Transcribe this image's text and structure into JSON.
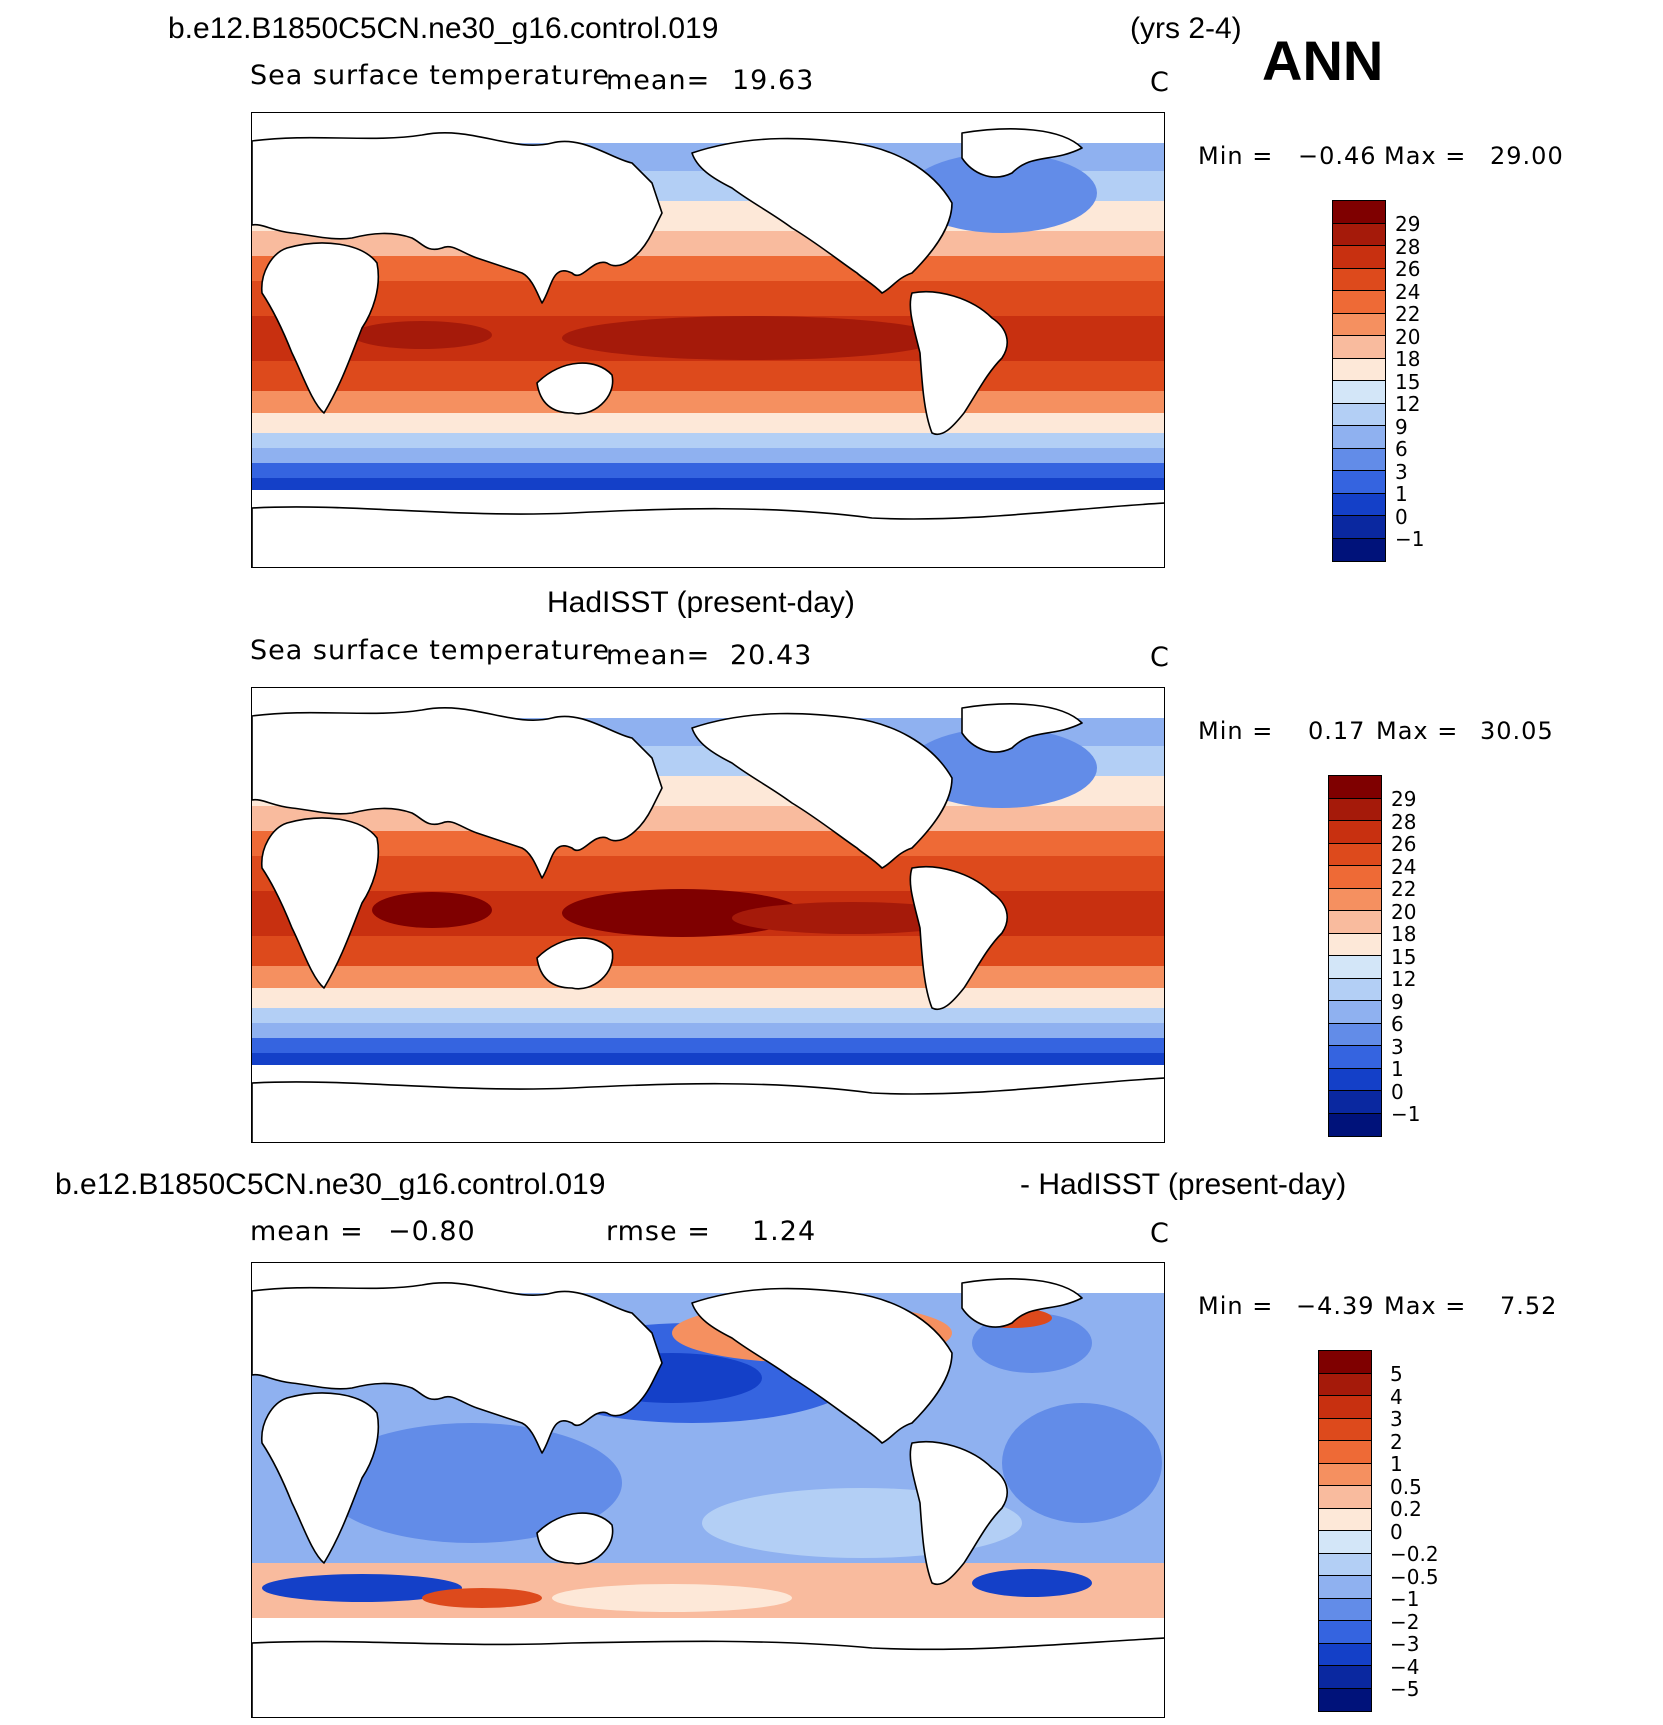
{
  "header": {
    "case_name": "b.e12.B1850C5CN.ne30_g16.control.019",
    "years": "(yrs 2-4)",
    "season": "ANN"
  },
  "panels": [
    {
      "id": "model",
      "variable": "Sea surface temperature",
      "mean_label": "mean=",
      "mean_value": "19.63",
      "units": "C",
      "min_label": "Min =",
      "min_value": "−0.46",
      "max_label": "Max =",
      "max_value": "29.00",
      "colorbar_labels": [
        "29",
        "28",
        "26",
        "24",
        "22",
        "20",
        "18",
        "15",
        "12",
        "9",
        "6",
        "3",
        "1",
        "0",
        "−1"
      ]
    },
    {
      "id": "obs",
      "title": "HadISST (present-day)",
      "variable": "Sea surface temperature",
      "mean_label": "mean=",
      "mean_value": "20.43",
      "units": "C",
      "min_label": "Min =",
      "min_value": "0.17",
      "max_label": "Max =",
      "max_value": "30.05",
      "colorbar_labels": [
        "29",
        "28",
        "26",
        "24",
        "22",
        "20",
        "18",
        "15",
        "12",
        "9",
        "6",
        "3",
        "1",
        "0",
        "−1"
      ]
    },
    {
      "id": "diff",
      "title_left": "b.e12.B1850C5CN.ne30_g16.control.019",
      "title_right": "- HadISST (present-day)",
      "mean_label": "mean =",
      "mean_value": "−0.80",
      "rmse_label": "rmse =",
      "rmse_value": "1.24",
      "units": "C",
      "min_label": "Min =",
      "min_value": "−4.39",
      "max_label": "Max =",
      "max_value": "7.52",
      "colorbar_labels": [
        "5",
        "4",
        "3",
        "2",
        "1",
        "0.5",
        "0.2",
        "0",
        "−0.2",
        "−0.5",
        "−1",
        "−2",
        "−3",
        "−4",
        "−5"
      ]
    }
  ],
  "colors": {
    "sst_scale": [
      "#7f0000",
      "#a51a0a",
      "#c83010",
      "#dd4a1c",
      "#ee6a36",
      "#f59060",
      "#f9bb9e",
      "#fde8d8",
      "#d3e6f8",
      "#b3cff5",
      "#8fb1f0",
      "#628ce8",
      "#3564e0",
      "#1440c8",
      "#0a28a0",
      "#00127a"
    ],
    "diff_scale": [
      "#7f0000",
      "#a51a0a",
      "#c83010",
      "#dd4a1c",
      "#ee6a36",
      "#f59060",
      "#f9bb9e",
      "#fde8d8",
      "#d3e6f8",
      "#b3cff5",
      "#8fb1f0",
      "#628ce8",
      "#3564e0",
      "#1440c8",
      "#0a28a0",
      "#00127a"
    ]
  }
}
